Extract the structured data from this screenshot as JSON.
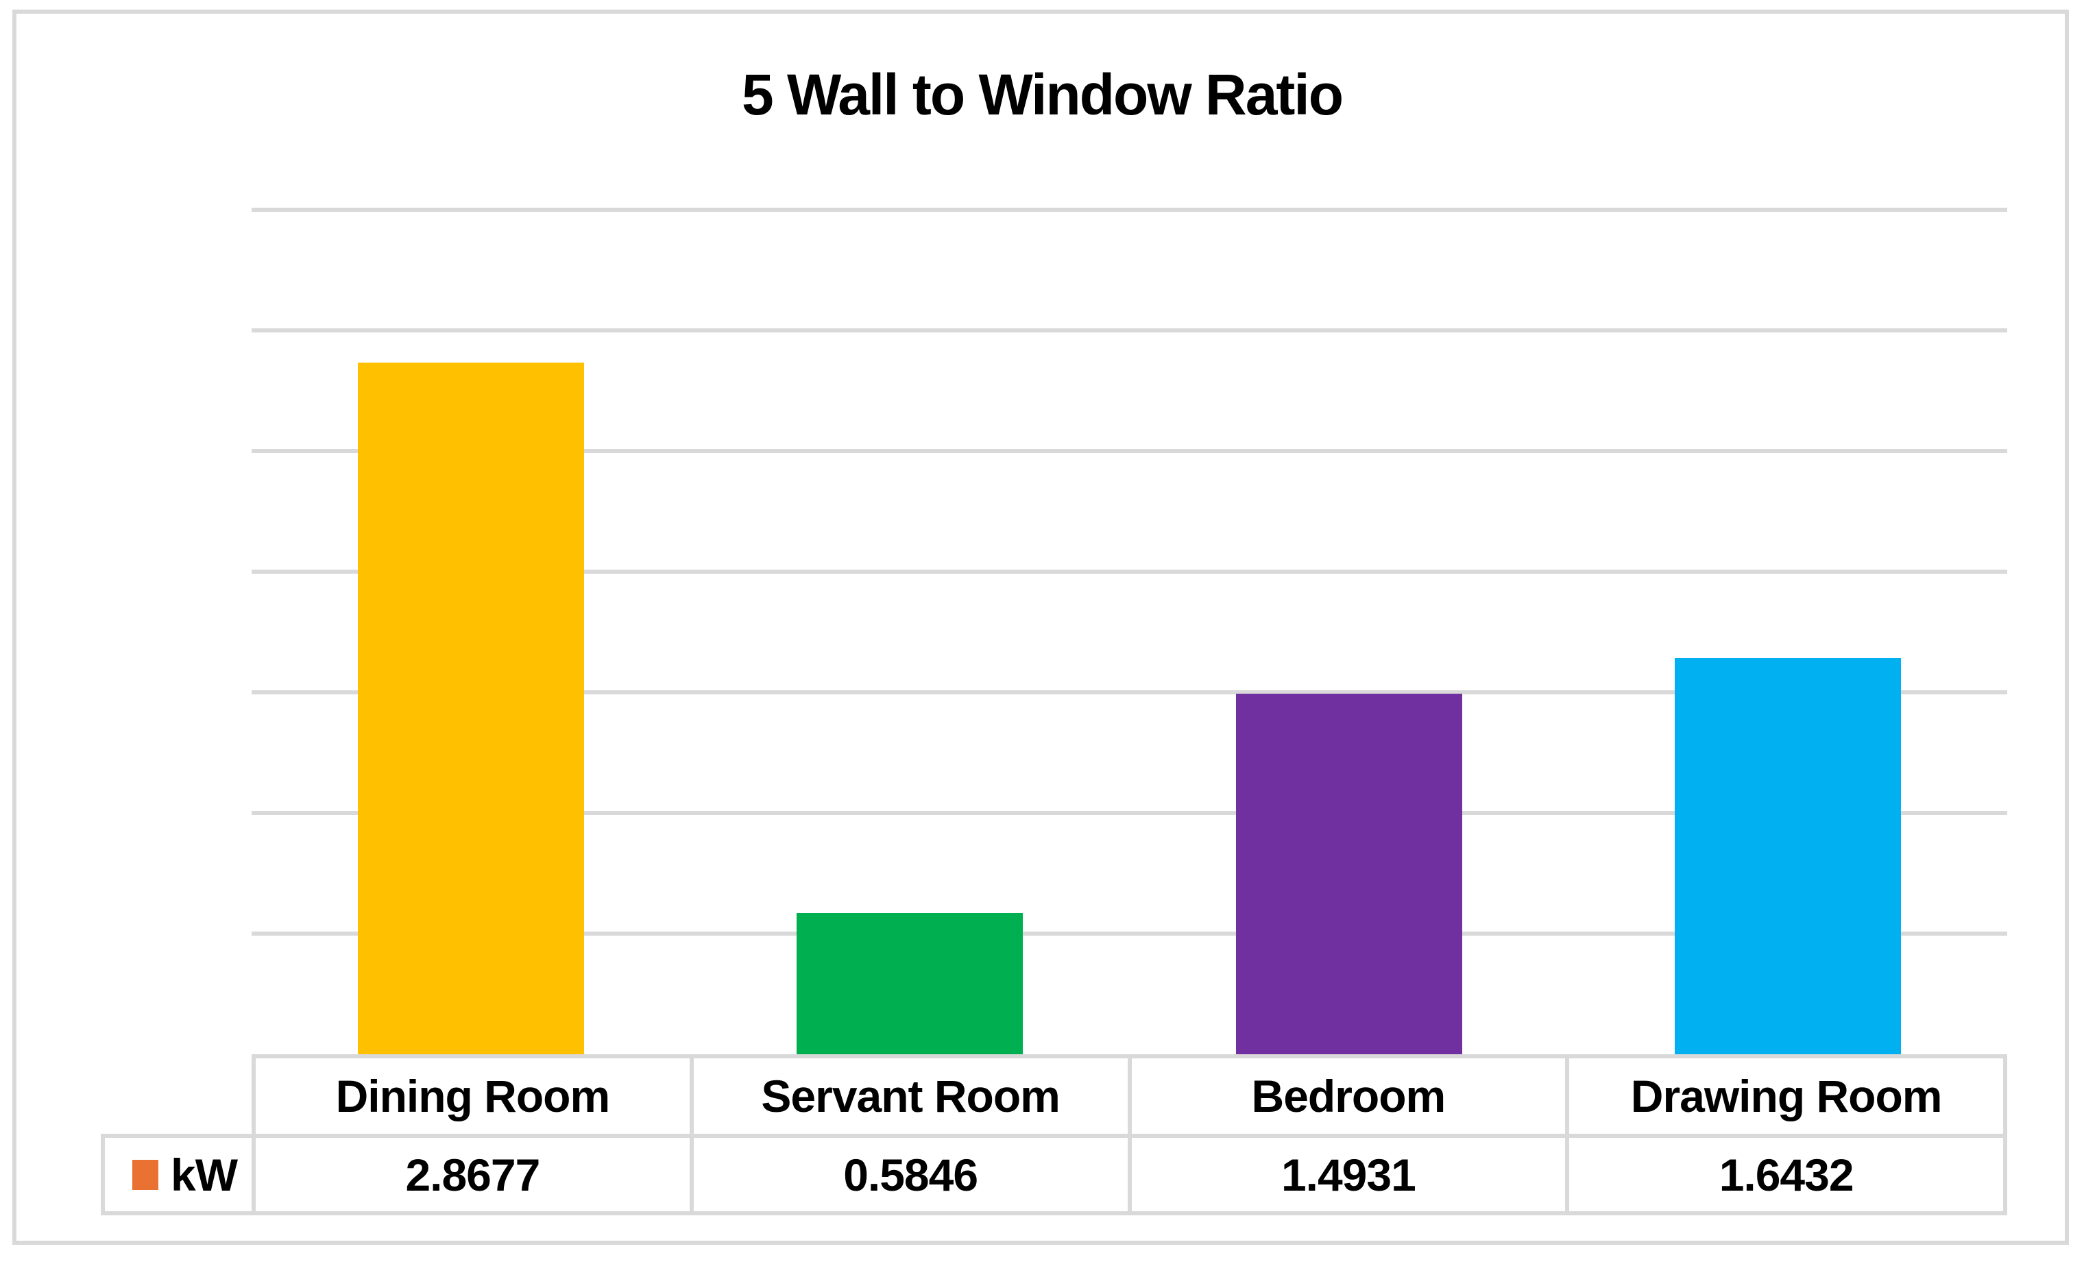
{
  "chart": {
    "title": "5 Wall to Window Ratio",
    "legend": {
      "label": "kW",
      "swatch_color": "#E97132"
    }
  },
  "chart_data": {
    "type": "bar",
    "title": "5 Wall to Window Ratio",
    "categories": [
      "Dining Room",
      "Servant Room",
      "Bedroom",
      "Drawing Room"
    ],
    "series": [
      {
        "name": "kW",
        "values": [
          2.8677,
          0.5846,
          1.4931,
          1.6432
        ]
      }
    ],
    "value_labels": [
      "2.8677",
      "0.5846",
      "1.4931",
      "1.6432"
    ],
    "bar_colors": [
      "#FFC000",
      "#00B050",
      "#7030A0",
      "#00B0F0"
    ],
    "xlabel": "",
    "ylabel": "",
    "ylim": [
      0,
      3.5
    ],
    "gridline_step": 0.5,
    "grid": true,
    "y_axis_labels_visible": false,
    "legend_position": "data-table-left",
    "data_table": true
  },
  "colors": {
    "gridline": "#D9D9D9",
    "table_border": "#D9D9D9",
    "frame_border": "#D9D9D9",
    "background": "#FFFFFF",
    "text": "#000000"
  }
}
